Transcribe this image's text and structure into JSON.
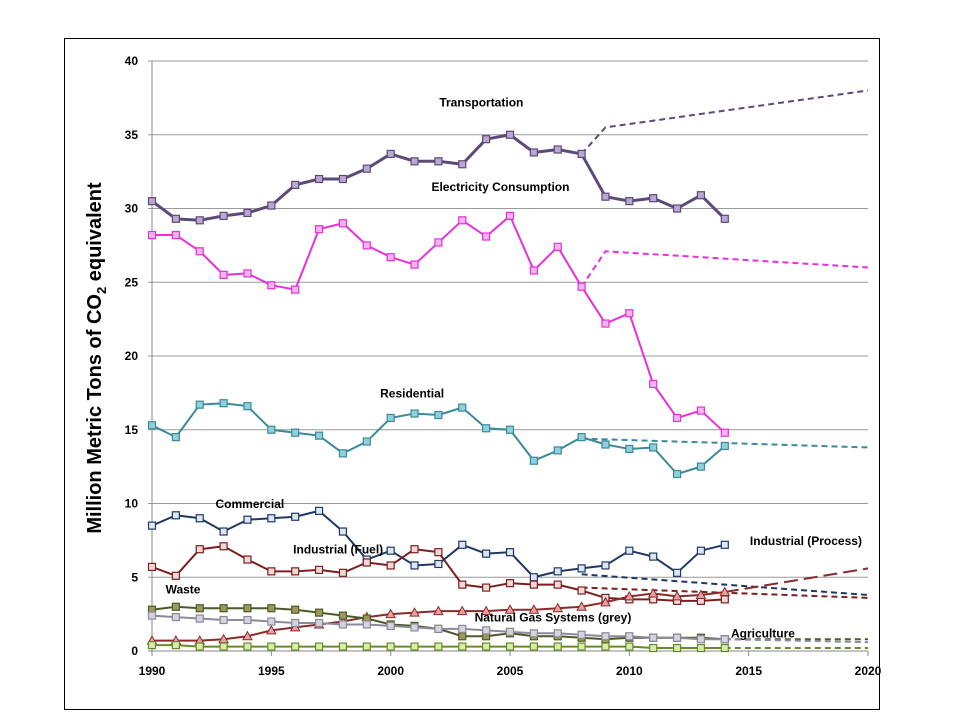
{
  "chart_data": {
    "type": "line",
    "ylabel_main": "Million Metric Tons of CO",
    "ylabel_sub": "2",
    "ylabel_tail": " equivalent",
    "xlim": [
      1990,
      2020
    ],
    "ylim": [
      0,
      40
    ],
    "x_ticks": [
      1990,
      1995,
      2000,
      2005,
      2010,
      2015,
      2020
    ],
    "y_ticks": [
      0,
      5,
      10,
      15,
      20,
      25,
      30,
      35,
      40
    ],
    "grid": "horizontal",
    "series": [
      {
        "name": "Transportation",
        "color": "#5b4a7a",
        "fill": "#b9a9d2",
        "width": 3,
        "marker": "square",
        "x": [
          1990,
          1991,
          1992,
          1993,
          1994,
          1995,
          1996,
          1997,
          1998,
          1999,
          2000,
          2001,
          2002,
          2003,
          2004,
          2005,
          2006,
          2007,
          2008,
          2009,
          2010,
          2011,
          2012,
          2013,
          2014
        ],
        "y": [
          30.5,
          29.3,
          29.2,
          29.5,
          29.7,
          30.2,
          31.6,
          32.0,
          32.0,
          32.7,
          33.7,
          33.2,
          33.2,
          33.0,
          34.7,
          35.0,
          33.8,
          34.0,
          33.7,
          30.8,
          30.5,
          30.7,
          30.0,
          30.9,
          29.3
        ],
        "projection": {
          "x": [
            2008,
            2009,
            2020
          ],
          "y": [
            33.7,
            35.5,
            38.0
          ]
        }
      },
      {
        "name": "Electricity Consumption",
        "color": "#e830d8",
        "fill": "#f2b6ee",
        "width": 2,
        "marker": "square",
        "x": [
          1990,
          1991,
          1992,
          1993,
          1994,
          1995,
          1996,
          1997,
          1998,
          1999,
          2000,
          2001,
          2002,
          2003,
          2004,
          2005,
          2006,
          2007,
          2008,
          2009,
          2010,
          2011,
          2012,
          2013,
          2014
        ],
        "y": [
          28.2,
          28.2,
          27.1,
          25.5,
          25.6,
          24.8,
          24.5,
          28.6,
          29.0,
          27.5,
          26.7,
          26.2,
          27.7,
          29.2,
          28.1,
          29.5,
          25.8,
          27.4,
          24.7,
          22.2,
          22.9,
          18.1,
          15.8,
          16.3,
          14.8
        ],
        "projection": {
          "x": [
            2008,
            2009,
            2020
          ],
          "y": [
            24.7,
            27.1,
            26.0
          ]
        }
      },
      {
        "name": "Residential",
        "color": "#3a8a9a",
        "fill": "#8fd0dc",
        "width": 2,
        "marker": "square",
        "x": [
          1990,
          1991,
          1992,
          1993,
          1994,
          1995,
          1996,
          1997,
          1998,
          1999,
          2000,
          2001,
          2002,
          2003,
          2004,
          2005,
          2006,
          2007,
          2008,
          2009,
          2010,
          2011,
          2012,
          2013,
          2014
        ],
        "y": [
          15.3,
          14.5,
          16.7,
          16.8,
          16.6,
          15.0,
          14.8,
          14.6,
          13.4,
          14.2,
          15.8,
          16.1,
          16.0,
          16.5,
          15.1,
          15.0,
          12.9,
          13.6,
          14.5,
          14.0,
          13.7,
          13.8,
          12.0,
          12.5,
          13.9
        ],
        "projection": {
          "x": [
            2008,
            2020
          ],
          "y": [
            14.4,
            13.8
          ]
        }
      },
      {
        "name": "Commercial",
        "color": "#1f3864",
        "fill": "#dfe6f2",
        "width": 2,
        "marker": "square",
        "x": [
          1990,
          1991,
          1992,
          1993,
          1994,
          1995,
          1996,
          1997,
          1998,
          1999,
          2000,
          2001,
          2002,
          2003,
          2004,
          2005,
          2006,
          2007,
          2008,
          2009,
          2010,
          2011,
          2012,
          2013,
          2014
        ],
        "y": [
          8.5,
          9.2,
          9.0,
          8.1,
          8.9,
          9.0,
          9.1,
          9.5,
          8.1,
          6.2,
          6.8,
          5.8,
          5.9,
          7.2,
          6.6,
          6.7,
          5.0,
          5.4,
          5.6,
          5.8,
          6.8,
          6.4,
          5.3,
          6.8,
          7.2
        ],
        "projection": {
          "x": [
            2008,
            2020
          ],
          "y": [
            5.2,
            3.8
          ]
        }
      },
      {
        "name": "Industrial (Fuel)",
        "color": "#7b1f1f",
        "fill": "#f0d8d8",
        "width": 2,
        "marker": "square",
        "x": [
          1990,
          1991,
          1992,
          1993,
          1994,
          1995,
          1996,
          1997,
          1998,
          1999,
          2000,
          2001,
          2002,
          2003,
          2004,
          2005,
          2006,
          2007,
          2008,
          2009,
          2010,
          2011,
          2012,
          2013,
          2014
        ],
        "y": [
          5.7,
          5.1,
          6.9,
          7.1,
          6.2,
          5.4,
          5.4,
          5.5,
          5.3,
          6.0,
          5.8,
          6.9,
          6.7,
          4.5,
          4.3,
          4.6,
          4.5,
          4.5,
          4.1,
          3.6,
          3.5,
          3.5,
          3.4,
          3.4,
          3.5
        ],
        "projection": {
          "x": [
            2008,
            2020
          ],
          "y": [
            4.3,
            3.6
          ]
        }
      },
      {
        "name": "Industrial (Process)",
        "color": "#8b2a2a",
        "fill": "#e8a0a0",
        "width": 2,
        "marker": "triangle",
        "x": [
          1990,
          1991,
          1992,
          1993,
          1994,
          1995,
          1996,
          1997,
          1998,
          1999,
          2000,
          2001,
          2002,
          2003,
          2004,
          2005,
          2006,
          2007,
          2008,
          2009,
          2010,
          2011,
          2012,
          2013,
          2014
        ],
        "y": [
          0.7,
          0.7,
          0.7,
          0.8,
          1.0,
          1.4,
          1.6,
          1.8,
          2.0,
          2.3,
          2.5,
          2.6,
          2.7,
          2.7,
          2.7,
          2.8,
          2.8,
          2.9,
          3.0,
          3.3,
          3.7,
          3.9,
          3.7,
          3.8,
          4.0
        ],
        "projection": {
          "x": [
            2014,
            2020
          ],
          "y": [
            4.0,
            5.6
          ]
        }
      },
      {
        "name": "Waste",
        "color": "#4f5a2a",
        "fill": "#9c9a5a",
        "width": 2,
        "marker": "square",
        "x": [
          1990,
          1991,
          1992,
          1993,
          1994,
          1995,
          1996,
          1997,
          1998,
          1999,
          2000,
          2001,
          2002,
          2003,
          2004,
          2005,
          2006,
          2007,
          2008,
          2009,
          2010,
          2011,
          2012,
          2013,
          2014
        ],
        "y": [
          2.8,
          3.0,
          2.9,
          2.9,
          2.9,
          2.9,
          2.8,
          2.6,
          2.4,
          2.2,
          1.8,
          1.7,
          1.5,
          1.0,
          1.0,
          1.2,
          1.0,
          1.0,
          0.9,
          0.8,
          0.9,
          0.9,
          0.9,
          0.9,
          0.8
        ],
        "projection": {
          "x": [
            2014,
            2020
          ],
          "y": [
            0.8,
            0.8
          ]
        }
      },
      {
        "name": "Natural Gas Systems (grey)",
        "color": "#8a8a9a",
        "fill": "#d4d4dc",
        "width": 2,
        "marker": "square",
        "x": [
          1990,
          1991,
          1992,
          1993,
          1994,
          1995,
          1996,
          1997,
          1998,
          1999,
          2000,
          2001,
          2002,
          2003,
          2004,
          2005,
          2006,
          2007,
          2008,
          2009,
          2010,
          2011,
          2012,
          2013,
          2014
        ],
        "y": [
          2.4,
          2.3,
          2.2,
          2.1,
          2.1,
          2.0,
          1.9,
          1.9,
          1.8,
          1.8,
          1.7,
          1.6,
          1.5,
          1.5,
          1.4,
          1.3,
          1.2,
          1.2,
          1.1,
          1.0,
          1.0,
          0.9,
          0.9,
          0.8,
          0.8
        ],
        "projection": {
          "x": [
            2014,
            2020
          ],
          "y": [
            0.8,
            0.6
          ]
        }
      },
      {
        "name": "Agriculture",
        "color": "#6a8a2a",
        "fill": "#d8ecb0",
        "width": 2,
        "marker": "square",
        "x": [
          1990,
          1991,
          1992,
          1993,
          1994,
          1995,
          1996,
          1997,
          1998,
          1999,
          2000,
          2001,
          2002,
          2003,
          2004,
          2005,
          2006,
          2007,
          2008,
          2009,
          2010,
          2011,
          2012,
          2013,
          2014
        ],
        "y": [
          0.4,
          0.4,
          0.3,
          0.3,
          0.3,
          0.3,
          0.3,
          0.3,
          0.3,
          0.3,
          0.3,
          0.3,
          0.3,
          0.3,
          0.3,
          0.3,
          0.3,
          0.3,
          0.3,
          0.3,
          0.3,
          0.2,
          0.2,
          0.2,
          0.2
        ],
        "projection": {
          "x": [
            2014,
            2020
          ],
          "y": [
            0.2,
            0.2
          ]
        }
      }
    ],
    "annotations": [
      {
        "key": "transportation",
        "text": "Transportation",
        "x": 2003.8,
        "y": 36.9
      },
      {
        "key": "electricity",
        "text": "Electricity Consumption",
        "x": 2004.6,
        "y": 31.2
      },
      {
        "key": "residential",
        "text": "Residential",
        "x": 2000.9,
        "y": 17.2
      },
      {
        "key": "commercial",
        "text": "Commercial",
        "x": 1994.1,
        "y": 9.7
      },
      {
        "key": "industrial-fuel",
        "text": "Industrial (Fuel)",
        "x": 1997.8,
        "y": 6.6
      },
      {
        "key": "industrial-process",
        "text": "Industrial (Process)",
        "x": 2017.4,
        "y": 7.2
      },
      {
        "key": "waste",
        "text": "Waste",
        "x": 1991.3,
        "y": 3.9
      },
      {
        "key": "natural-gas",
        "text": "Natural Gas Systems (grey)",
        "x": 2006.8,
        "y": 2.0
      },
      {
        "key": "agriculture",
        "text": "Agriculture",
        "x": 2015.6,
        "y": 0.9
      }
    ]
  }
}
